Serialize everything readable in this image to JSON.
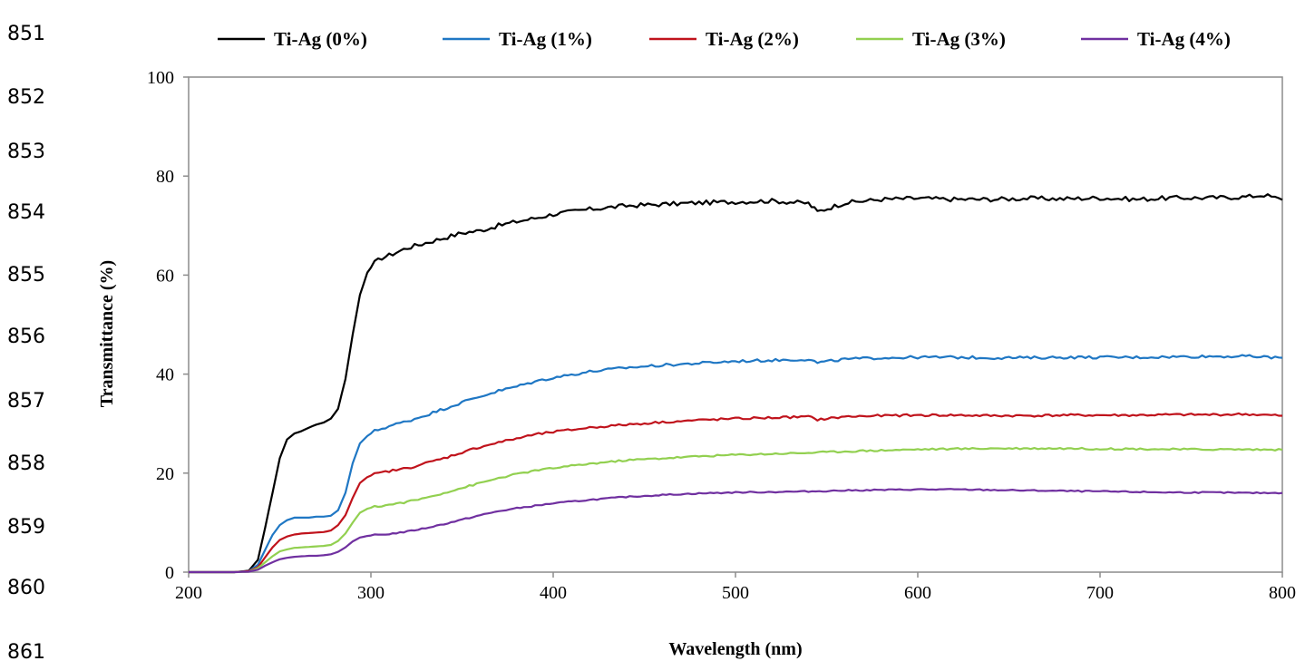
{
  "line_numbers": [
    "851",
    "852",
    "853",
    "854",
    "855",
    "856",
    "857",
    "858",
    "859",
    "860",
    "861"
  ],
  "chart_data": {
    "type": "line",
    "title": "",
    "xlabel": "Wavelength (nm)",
    "ylabel": "Transmittance (%)",
    "xlim": [
      200,
      800
    ],
    "ylim": [
      0,
      100
    ],
    "x_ticks": [
      "200",
      "300",
      "400",
      "500",
      "600",
      "700",
      "800"
    ],
    "y_ticks": [
      "0",
      "20",
      "40",
      "60",
      "80",
      "100"
    ],
    "grid": false,
    "legend_position": "top",
    "series": [
      {
        "name": "Ti-Ag (0%)",
        "color": "#000000",
        "x": [
          200,
          225,
          233,
          238,
          242,
          246,
          250,
          254,
          258,
          262,
          266,
          270,
          274,
          278,
          282,
          286,
          290,
          294,
          298,
          302,
          306,
          310,
          320,
          330,
          340,
          350,
          360,
          370,
          380,
          390,
          400,
          420,
          440,
          460,
          480,
          500,
          520,
          540,
          545,
          560,
          580,
          600,
          620,
          640,
          660,
          680,
          700,
          720,
          740,
          760,
          780,
          790,
          800
        ],
        "y": [
          0,
          0,
          0.3,
          2.5,
          9,
          16,
          23,
          26.8,
          28,
          28.5,
          29.2,
          29.8,
          30.2,
          31,
          33,
          39,
          48,
          56,
          60.5,
          62.5,
          63.5,
          64,
          65.5,
          66.5,
          67.5,
          68.5,
          69,
          70,
          70.8,
          71.5,
          72.3,
          73.3,
          74,
          74.3,
          74.6,
          74.8,
          75,
          74.5,
          72.8,
          74.6,
          75.3,
          75.5,
          75.3,
          75.3,
          75.5,
          75.4,
          75.6,
          75.3,
          75.6,
          75.6,
          75.8,
          76.2,
          75.2
        ]
      },
      {
        "name": "Ti-Ag (1%)",
        "color": "#1f77c4",
        "x": [
          200,
          225,
          233,
          238,
          242,
          246,
          250,
          254,
          258,
          262,
          266,
          270,
          274,
          278,
          282,
          286,
          290,
          294,
          298,
          302,
          306,
          310,
          320,
          330,
          340,
          350,
          360,
          370,
          380,
          390,
          400,
          420,
          440,
          460,
          480,
          500,
          520,
          540,
          545,
          560,
          580,
          600,
          620,
          640,
          660,
          680,
          700,
          720,
          740,
          760,
          780,
          800
        ],
        "y": [
          0,
          0,
          0.2,
          1.5,
          4.5,
          7.5,
          9.5,
          10.5,
          11,
          11,
          11,
          11.2,
          11.2,
          11.4,
          12.5,
          16,
          22,
          26,
          27.5,
          28.5,
          29,
          29.5,
          30.5,
          31.7,
          33,
          34.3,
          35.5,
          36.6,
          37.5,
          38.5,
          39.3,
          40.5,
          41.3,
          41.8,
          42.2,
          42.6,
          42.8,
          43,
          42.3,
          43,
          43.3,
          43.4,
          43.4,
          43.3,
          43.3,
          43.4,
          43.4,
          43.4,
          43.5,
          43.6,
          43.6,
          43.3
        ]
      },
      {
        "name": "Ti-Ag (2%)",
        "color": "#c0131c",
        "x": [
          200,
          225,
          233,
          238,
          242,
          246,
          250,
          254,
          258,
          262,
          266,
          270,
          274,
          278,
          282,
          286,
          290,
          294,
          298,
          302,
          306,
          310,
          320,
          330,
          340,
          350,
          360,
          370,
          380,
          390,
          400,
          420,
          440,
          460,
          480,
          500,
          520,
          540,
          545,
          560,
          580,
          600,
          620,
          640,
          660,
          680,
          700,
          720,
          740,
          760,
          780,
          800
        ],
        "y": [
          0,
          0,
          0.2,
          1,
          3,
          5,
          6.5,
          7.2,
          7.6,
          7.8,
          7.9,
          8,
          8.1,
          8.4,
          9.5,
          11.5,
          15,
          18,
          19.2,
          19.8,
          20.1,
          20.4,
          21,
          22,
          23,
          24.2,
          25.3,
          26.2,
          27,
          27.8,
          28.3,
          29.2,
          29.8,
          30.3,
          30.7,
          31,
          31.2,
          31.4,
          30.8,
          31.4,
          31.6,
          31.7,
          31.7,
          31.6,
          31.6,
          31.7,
          31.7,
          31.7,
          31.8,
          31.8,
          31.9,
          31.6
        ]
      },
      {
        "name": "Ti-Ag (3%)",
        "color": "#92d050",
        "x": [
          200,
          225,
          233,
          238,
          242,
          246,
          250,
          254,
          258,
          262,
          266,
          270,
          274,
          278,
          282,
          286,
          290,
          294,
          298,
          302,
          306,
          310,
          320,
          330,
          340,
          350,
          360,
          370,
          380,
          390,
          400,
          420,
          440,
          460,
          480,
          500,
          520,
          540,
          560,
          580,
          600,
          620,
          640,
          660,
          680,
          700,
          720,
          740,
          760,
          780,
          800
        ],
        "y": [
          0,
          0,
          0.1,
          0.8,
          2,
          3.2,
          4.2,
          4.6,
          4.9,
          5,
          5.1,
          5.2,
          5.3,
          5.5,
          6.3,
          7.8,
          10,
          12,
          12.8,
          13.2,
          13.4,
          13.6,
          14.2,
          15,
          16,
          17,
          18,
          19,
          19.8,
          20.5,
          21,
          21.9,
          22.6,
          23,
          23.4,
          23.7,
          23.9,
          24.1,
          24.4,
          24.6,
          24.8,
          24.9,
          25,
          25,
          25,
          24.9,
          24.9,
          24.8,
          24.8,
          24.8,
          24.7
        ]
      },
      {
        "name": "Ti-Ag (4%)",
        "color": "#7030a0",
        "x": [
          200,
          225,
          233,
          238,
          242,
          246,
          250,
          254,
          258,
          262,
          266,
          270,
          274,
          278,
          282,
          286,
          290,
          294,
          298,
          302,
          306,
          310,
          320,
          330,
          340,
          350,
          360,
          370,
          380,
          390,
          400,
          420,
          440,
          460,
          480,
          500,
          520,
          540,
          560,
          580,
          600,
          620,
          640,
          660,
          680,
          700,
          720,
          740,
          760,
          780,
          800
        ],
        "y": [
          0,
          0,
          0.1,
          0.5,
          1.3,
          2,
          2.6,
          2.9,
          3.1,
          3.2,
          3.3,
          3.3,
          3.4,
          3.6,
          4.1,
          5,
          6.2,
          7,
          7.3,
          7.5,
          7.6,
          7.7,
          8.2,
          8.9,
          9.7,
          10.6,
          11.5,
          12.3,
          12.9,
          13.4,
          13.9,
          14.6,
          15.2,
          15.6,
          15.9,
          16.1,
          16.2,
          16.3,
          16.5,
          16.6,
          16.7,
          16.7,
          16.6,
          16.5,
          16.4,
          16.3,
          16.2,
          16.1,
          16.1,
          16,
          16
        ]
      }
    ]
  }
}
